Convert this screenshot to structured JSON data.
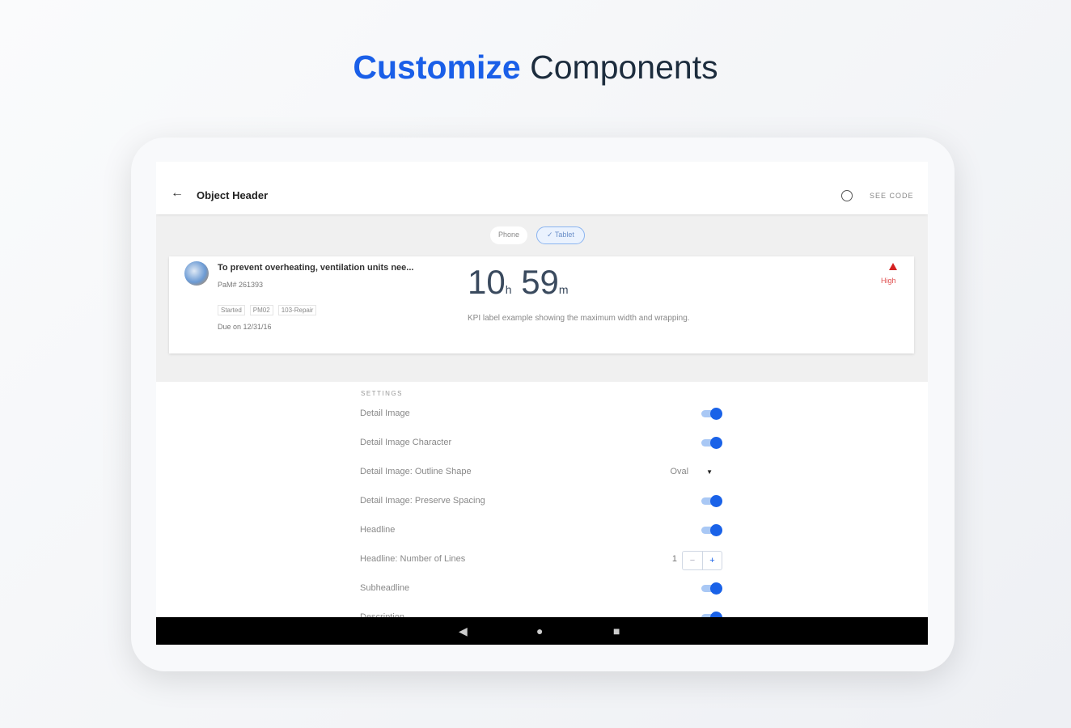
{
  "hero": {
    "accent": "Customize",
    "rest": "Components"
  },
  "appbar": {
    "back_icon": "arrow-left-icon",
    "title": "Object Header",
    "info_icon": "info-icon",
    "see_code": "SEE CODE"
  },
  "segments": {
    "phone": "Phone",
    "tablet": "Tablet",
    "selected": "Tablet"
  },
  "object_header": {
    "headline": "To prevent overheating, ventilation units nee...",
    "subheadline": "PaM# 261393",
    "tags": [
      "Started",
      "PM02",
      "103-Repair"
    ],
    "due": "Due on 12/31/16",
    "kpi": {
      "hours": "10",
      "hours_unit": "h",
      "minutes": "59",
      "minutes_unit": "m"
    },
    "kpi_label": "KPI label example showing the maximum width and wrapping.",
    "priority": "High",
    "priority_color": "#d42020"
  },
  "settings": {
    "header": "SETTINGS",
    "rows": [
      {
        "label": "Detail Image",
        "type": "toggle",
        "on": true
      },
      {
        "label": "Detail Image Character",
        "type": "toggle",
        "on": true
      },
      {
        "label": "Detail Image: Outline Shape",
        "type": "select",
        "value": "Oval"
      },
      {
        "label": "Detail Image: Preserve Spacing",
        "type": "toggle",
        "on": true
      },
      {
        "label": "Headline",
        "type": "toggle",
        "on": true
      },
      {
        "label": "Headline: Number of Lines",
        "type": "stepper",
        "value": "1"
      },
      {
        "label": "Subheadline",
        "type": "toggle",
        "on": true
      },
      {
        "label": "Description",
        "type": "toggle",
        "on": true
      }
    ]
  },
  "colors": {
    "accent": "#1a5fe8",
    "toggle": "#1a62e8"
  },
  "navbar": {
    "back": "◀",
    "home": "●",
    "recents": "■"
  }
}
